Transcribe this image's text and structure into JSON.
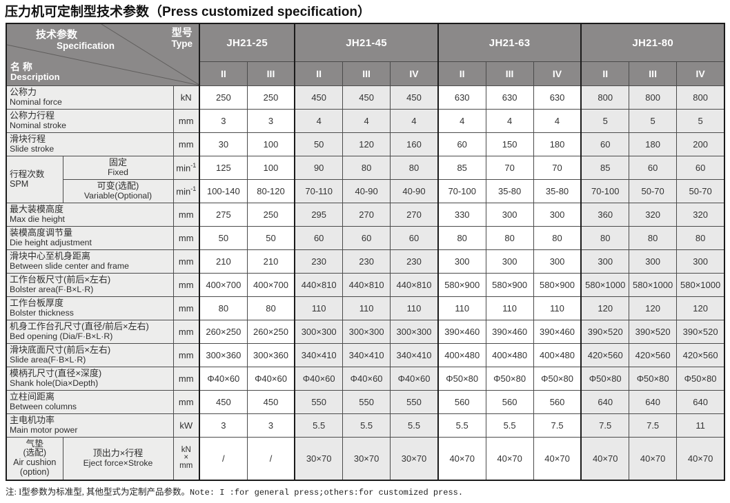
{
  "title": "压力机可定制型技术参数（Press customized specification）",
  "colors": {
    "header_bg": "#8b8989",
    "header_text": "#ffffff",
    "label_bg": "#ededec",
    "shaded_group_bg": "#e9e9e9",
    "body_text": "#333333",
    "border": "#1a1a1a"
  },
  "header": {
    "corner": {
      "spec_zh": "技术参数",
      "spec_en": "Specification",
      "type_zh": "型号",
      "type_en": "Type",
      "desc_zh": "名 称",
      "desc_en": "Description"
    },
    "models": [
      {
        "name": "JH21-25",
        "types": [
          "II",
          "III"
        ],
        "shaded": false
      },
      {
        "name": "JH21-45",
        "types": [
          "II",
          "III",
          "IV"
        ],
        "shaded": true
      },
      {
        "name": "JH21-63",
        "types": [
          "II",
          "III",
          "IV"
        ],
        "shaded": false
      },
      {
        "name": "JH21-80",
        "types": [
          "II",
          "III",
          "IV"
        ],
        "shaded": true
      }
    ]
  },
  "rows": [
    {
      "label": {
        "zh": "公称力",
        "en": "Nominal force"
      },
      "unit": "kN",
      "values": [
        "250",
        "250",
        "450",
        "450",
        "450",
        "630",
        "630",
        "630",
        "800",
        "800",
        "800"
      ]
    },
    {
      "label": {
        "zh": "公称力行程",
        "en": "Nominal stroke"
      },
      "unit": "mm",
      "values": [
        "3",
        "3",
        "4",
        "4",
        "4",
        "4",
        "4",
        "4",
        "5",
        "5",
        "5"
      ]
    },
    {
      "label": {
        "zh": "滑块行程",
        "en": "Slide stroke"
      },
      "unit": "mm",
      "values": [
        "30",
        "100",
        "50",
        "120",
        "160",
        "60",
        "150",
        "180",
        "60",
        "180",
        "200"
      ]
    },
    {
      "grouplabel": {
        "lines": [
          "行程次数",
          "SPM"
        ],
        "span": 2,
        "align": "left"
      },
      "sublabel": {
        "zh": "固定",
        "en": "Fixed"
      },
      "unit": "min-1",
      "values": [
        "125",
        "100",
        "90",
        "80",
        "80",
        "85",
        "70",
        "70",
        "85",
        "60",
        "60"
      ]
    },
    {
      "sublabel": {
        "zh": "可变(选配)",
        "en": "Variable(Optional)"
      },
      "unit": "min-1",
      "values": [
        "100-140",
        "80-120",
        "70-110",
        "40-90",
        "40-90",
        "70-100",
        "35-80",
        "35-80",
        "70-100",
        "50-70",
        "50-70"
      ]
    },
    {
      "label": {
        "zh": "最大装模高度",
        "en": "Max die height"
      },
      "unit": "mm",
      "values": [
        "275",
        "250",
        "295",
        "270",
        "270",
        "330",
        "300",
        "300",
        "360",
        "320",
        "320"
      ]
    },
    {
      "label": {
        "zh": "装模高度调节量",
        "en": "Die height adjustment"
      },
      "unit": "mm",
      "values": [
        "50",
        "50",
        "60",
        "60",
        "60",
        "80",
        "80",
        "80",
        "80",
        "80",
        "80"
      ]
    },
    {
      "label": {
        "zh": "滑块中心至机身距离",
        "en": "Between slide center and frame"
      },
      "unit": "mm",
      "values": [
        "210",
        "210",
        "230",
        "230",
        "230",
        "300",
        "300",
        "300",
        "300",
        "300",
        "300"
      ]
    },
    {
      "label": {
        "zh": "工作台板尺寸(前后×左右)",
        "en": "Bolster area(F·B×L·R)"
      },
      "unit": "mm",
      "values": [
        "400×700",
        "400×700",
        "440×810",
        "440×810",
        "440×810",
        "580×900",
        "580×900",
        "580×900",
        "580×1000",
        "580×1000",
        "580×1000"
      ]
    },
    {
      "label": {
        "zh": "工作台板厚度",
        "en": "Bolster thickness"
      },
      "unit": "mm",
      "values": [
        "80",
        "80",
        "110",
        "110",
        "110",
        "110",
        "110",
        "110",
        "120",
        "120",
        "120"
      ]
    },
    {
      "label": {
        "zh": "机身工作台孔尺寸(直径/前后×左右)",
        "en": "Bed opening (Dia/F·B×L·R)"
      },
      "unit": "mm",
      "values": [
        "260×250",
        "260×250",
        "300×300",
        "300×300",
        "300×300",
        "390×460",
        "390×460",
        "390×460",
        "390×520",
        "390×520",
        "390×520"
      ]
    },
    {
      "label": {
        "zh": "滑块底面尺寸(前后×左右)",
        "en": "Slide area(F·B×L·R)"
      },
      "unit": "mm",
      "values": [
        "300×360",
        "300×360",
        "340×410",
        "340×410",
        "340×410",
        "400×480",
        "400×480",
        "400×480",
        "420×560",
        "420×560",
        "420×560"
      ]
    },
    {
      "label": {
        "zh": "模柄孔尺寸(直径×深度)",
        "en": "Shank hole(Dia×Depth)"
      },
      "unit": "mm",
      "values": [
        "Φ40×60",
        "Φ40×60",
        "Φ40×60",
        "Φ40×60",
        "Φ40×60",
        "Φ50×80",
        "Φ50×80",
        "Φ50×80",
        "Φ50×80",
        "Φ50×80",
        "Φ50×80"
      ]
    },
    {
      "label": {
        "zh": "立柱间距离",
        "en": "Between columns"
      },
      "unit": "mm",
      "values": [
        "450",
        "450",
        "550",
        "550",
        "550",
        "560",
        "560",
        "560",
        "640",
        "640",
        "640"
      ]
    },
    {
      "label": {
        "zh": "主电机功率",
        "en": "Main motor power"
      },
      "unit": "kW",
      "values": [
        "3",
        "3",
        "5.5",
        "5.5",
        "5.5",
        "5.5",
        "5.5",
        "7.5",
        "7.5",
        "7.5",
        "11"
      ]
    },
    {
      "grouplabel": {
        "lines": [
          "气垫",
          "(选配)",
          "Air cushion",
          "(option)"
        ],
        "span": 1,
        "align": "center"
      },
      "sublabel": {
        "zh": "顶出力×行程",
        "en": "Eject force×Stroke"
      },
      "unit": "kN×mm",
      "tall": true,
      "values": [
        "/",
        "/",
        "30×70",
        "30×70",
        "30×70",
        "40×70",
        "40×70",
        "40×70",
        "40×70",
        "40×70",
        "40×70"
      ]
    }
  ],
  "note": {
    "zh": "注: I型参数为标准型, 其他型式为定制产品参数。",
    "en": "Note: I :for general press;others:for customized press."
  }
}
